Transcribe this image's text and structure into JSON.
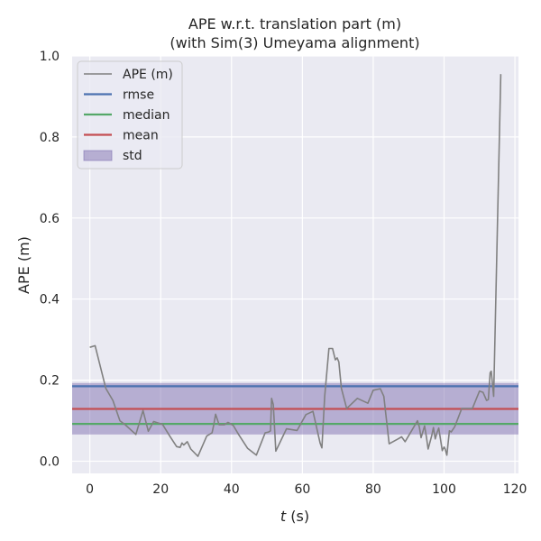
{
  "chart_data": {
    "type": "line",
    "title": "APE w.r.t. translation part (m)",
    "subtitle": "(with Sim(3) Umeyama alignment)",
    "xlabel_italic": "t",
    "xlabel_rest": " (s)",
    "ylabel": "APE (m)",
    "xlim": [
      -5,
      121
    ],
    "ylim": [
      -0.03,
      1.0
    ],
    "xticks": [
      0,
      20,
      40,
      60,
      80,
      100,
      120
    ],
    "yticks": [
      0.0,
      0.2,
      0.4,
      0.6,
      0.8,
      1.0
    ],
    "xtick_labels": [
      "0",
      "20",
      "40",
      "60",
      "80",
      "100",
      "120"
    ],
    "ytick_labels": [
      "0.0",
      "0.2",
      "0.4",
      "0.6",
      "0.8",
      "1.0"
    ],
    "grid": true,
    "legend_position": "top-left",
    "legend": [
      {
        "label": "APE (m)",
        "kind": "line",
        "color": "#808080"
      },
      {
        "label": "rmse",
        "kind": "line",
        "color": "#4C72B0"
      },
      {
        "label": "median",
        "kind": "line",
        "color": "#55A868"
      },
      {
        "label": "mean",
        "kind": "line",
        "color": "#C44E52"
      },
      {
        "label": "std",
        "kind": "patch",
        "color": "#8172B2"
      }
    ],
    "stats": {
      "rmse": 0.185,
      "median": 0.092,
      "mean": 0.129,
      "std_low": 0.066,
      "std_high": 0.193
    },
    "series": [
      {
        "name": "APE (m)",
        "color": "#808080",
        "x": [
          0,
          1.5,
          4.5,
          6.5,
          8.5,
          10,
          13,
          15,
          16.5,
          18,
          20.5,
          22.5,
          24.5,
          25.5,
          26,
          26.5,
          27.5,
          28.5,
          30.5,
          33,
          34.5,
          35,
          35.5,
          36.5,
          38,
          39,
          40.5,
          42,
          44.5,
          47,
          49.5,
          50.5,
          51,
          51.3,
          51.8,
          52.5,
          55.5,
          58.5,
          61,
          63,
          65,
          65.5,
          66.3,
          67,
          67.5,
          68.5,
          69.3,
          69.8,
          70.3,
          71,
          72.5,
          75.5,
          78.5,
          80,
          82,
          83,
          83.5,
          84.5,
          87,
          88,
          89,
          91.5,
          92.5,
          93,
          93.5,
          94.5,
          95,
          95.5,
          96.5,
          97,
          97.5,
          98,
          98.5,
          99.5,
          100,
          100.3,
          100.8,
          101.5,
          102,
          103,
          105,
          108,
          110,
          111,
          112,
          112.5,
          113,
          113.3,
          114,
          116
        ],
        "y": [
          0.281,
          0.285,
          0.18,
          0.15,
          0.1,
          0.09,
          0.066,
          0.125,
          0.074,
          0.098,
          0.091,
          0.063,
          0.036,
          0.034,
          0.045,
          0.04,
          0.048,
          0.03,
          0.012,
          0.062,
          0.07,
          0.09,
          0.116,
          0.09,
          0.09,
          0.096,
          0.088,
          0.066,
          0.032,
          0.015,
          0.07,
          0.072,
          0.075,
          0.155,
          0.14,
          0.025,
          0.08,
          0.076,
          0.115,
          0.123,
          0.045,
          0.033,
          0.16,
          0.23,
          0.278,
          0.278,
          0.25,
          0.255,
          0.245,
          0.18,
          0.13,
          0.155,
          0.143,
          0.175,
          0.179,
          0.16,
          0.12,
          0.043,
          0.055,
          0.06,
          0.048,
          0.085,
          0.1,
          0.085,
          0.058,
          0.087,
          0.06,
          0.03,
          0.063,
          0.083,
          0.055,
          0.07,
          0.082,
          0.026,
          0.035,
          0.03,
          0.015,
          0.075,
          0.072,
          0.085,
          0.13,
          0.13,
          0.173,
          0.17,
          0.15,
          0.152,
          0.218,
          0.222,
          0.16,
          0.955
        ]
      }
    ]
  }
}
